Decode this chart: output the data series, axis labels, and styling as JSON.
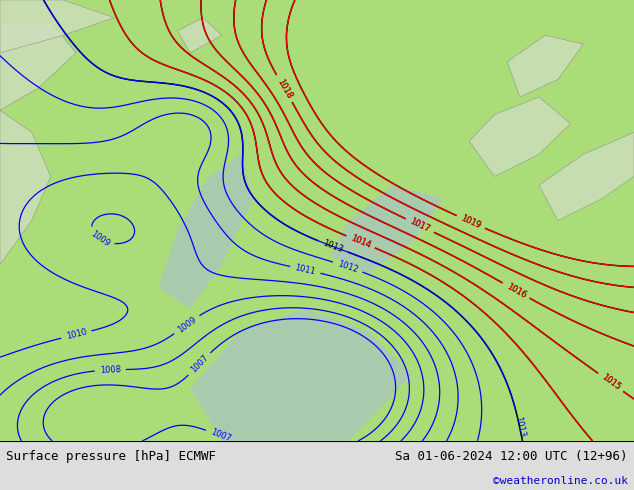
{
  "title_left": "Surface pressure [hPa] ECMWF",
  "title_right": "Sa 01-06-2024 12:00 UTC (12+96)",
  "credit": "©weatheronline.co.uk",
  "credit_color": "#0000cc",
  "bg_color": "#aadd77",
  "fig_width": 6.34,
  "fig_height": 4.9,
  "dpi": 100,
  "bottom_bar_color": "#cccccc",
  "text_color_left": "#000000",
  "text_color_right": "#000000",
  "font_size_bottom": 9,
  "font_size_credit": 8
}
